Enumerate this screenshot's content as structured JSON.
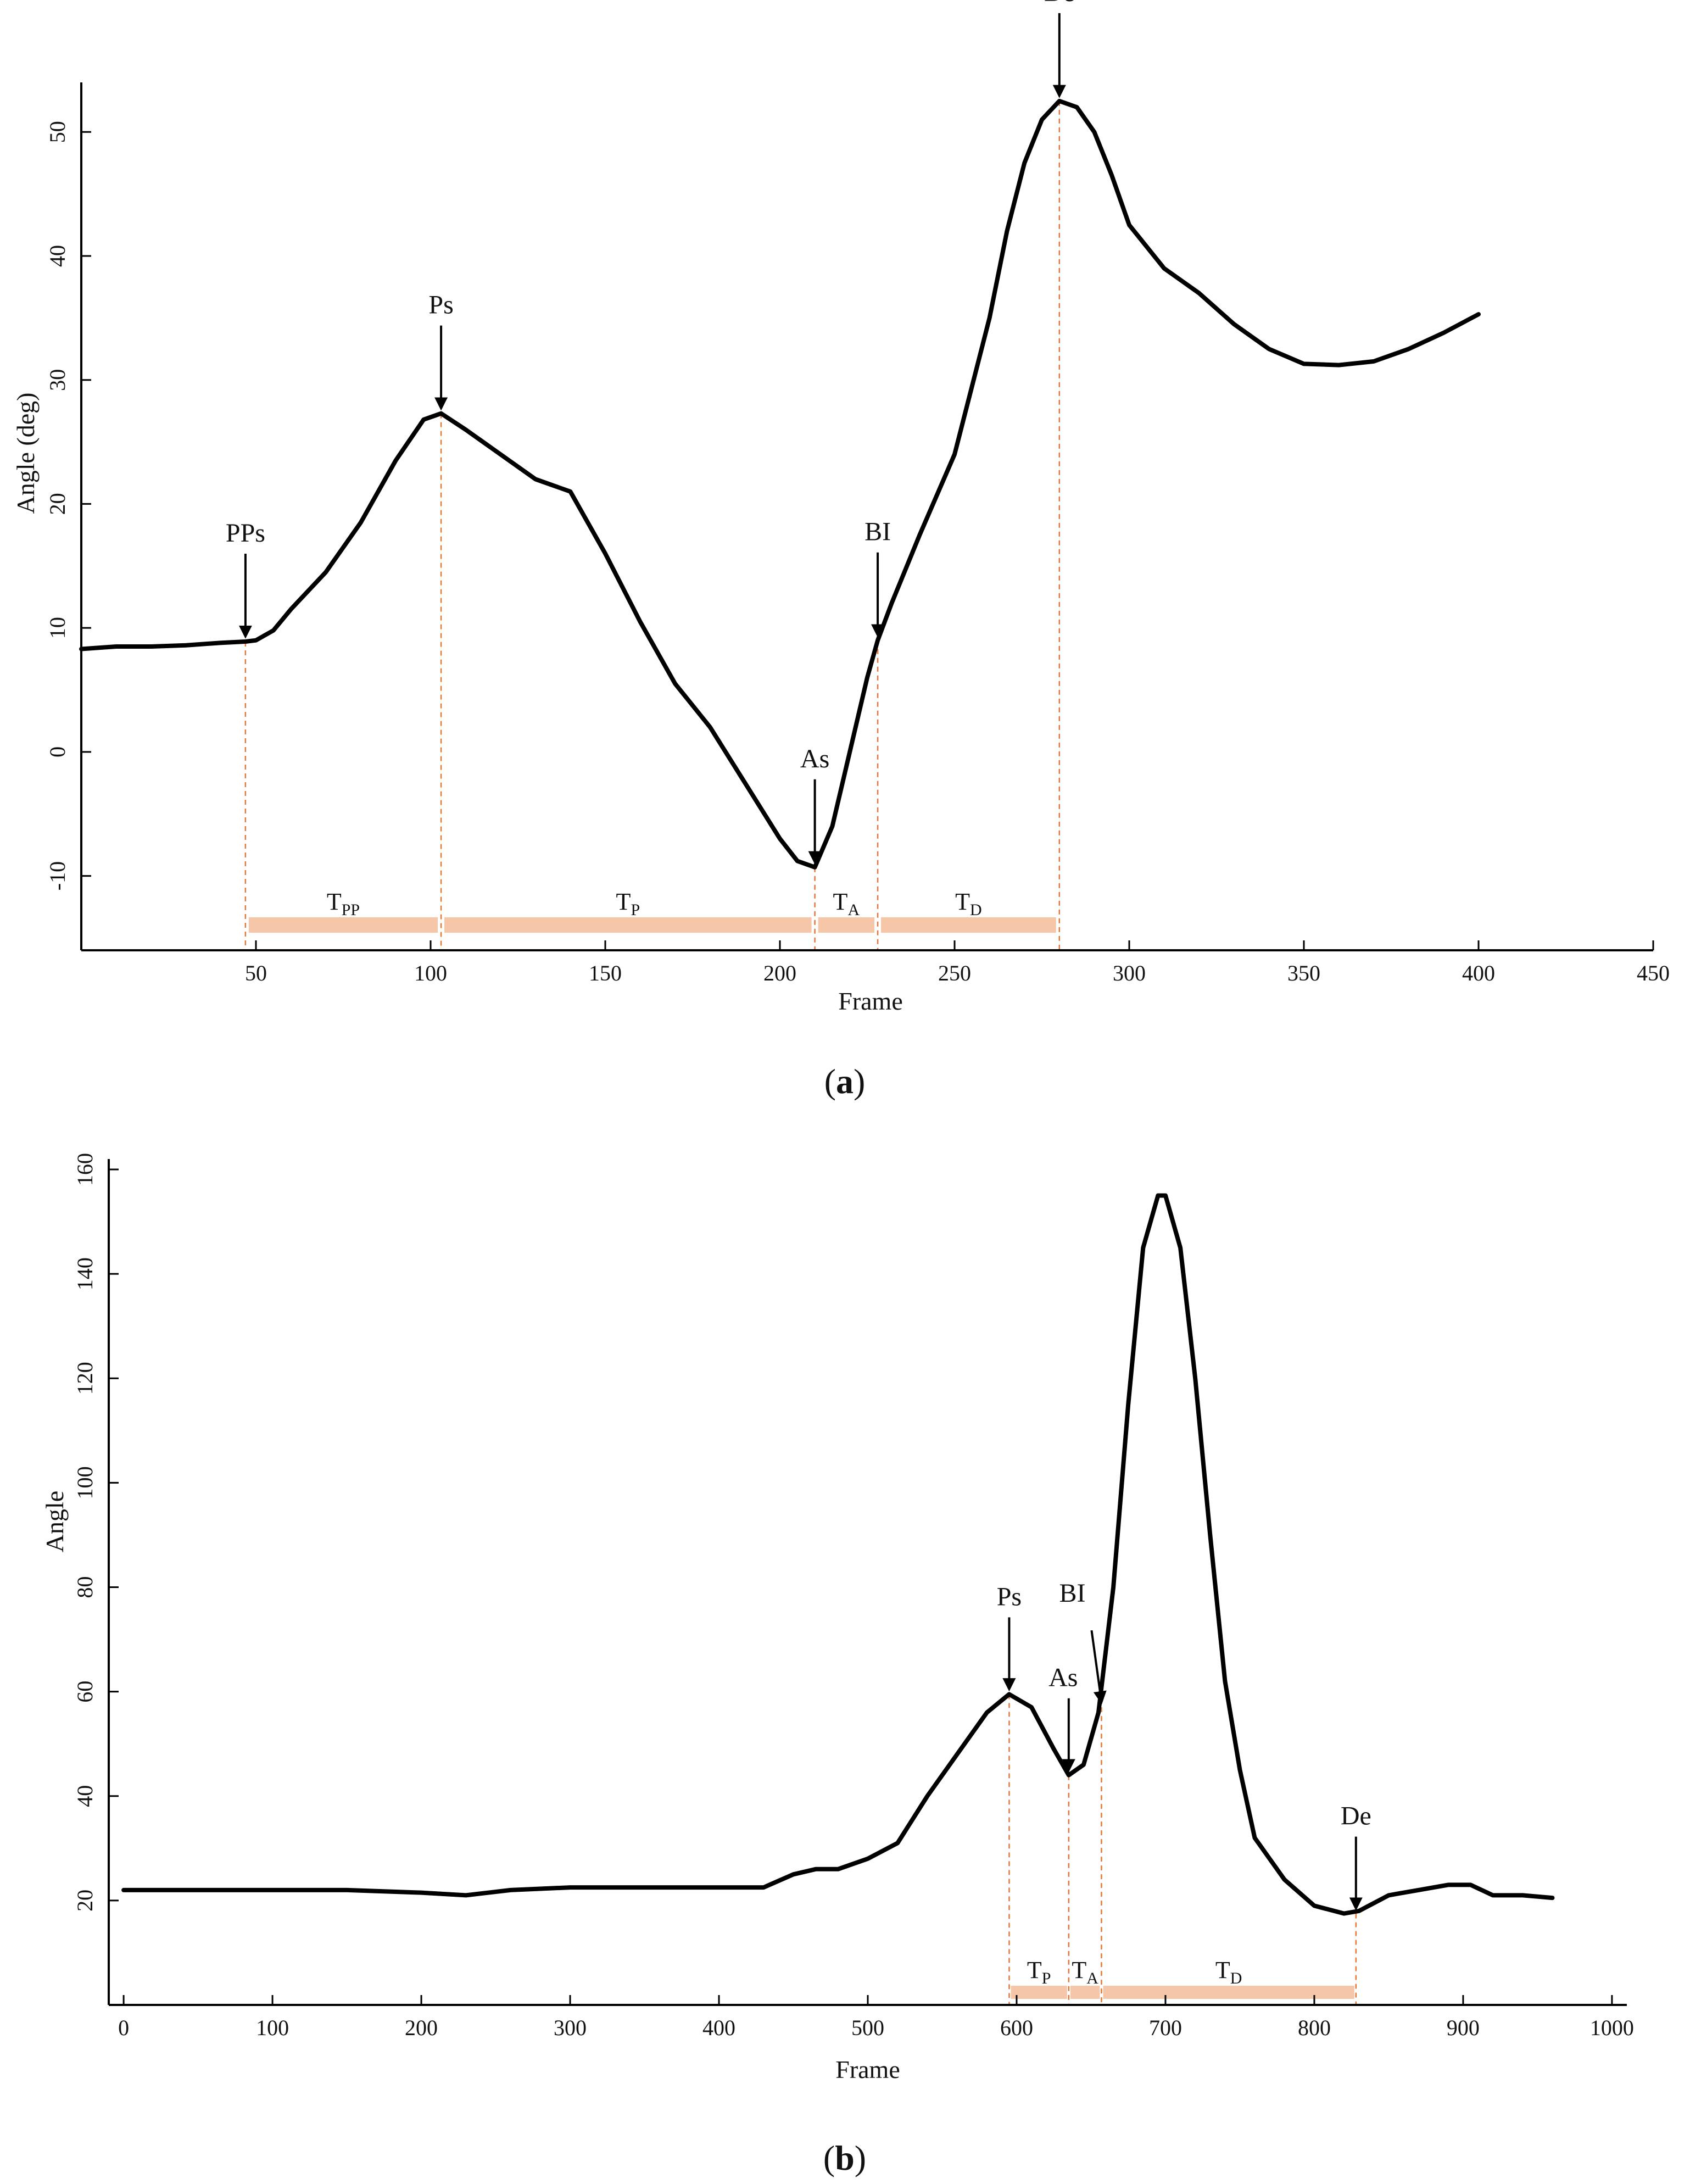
{
  "figure": {
    "captions": [
      {
        "open": "(",
        "letter": "a",
        "close": ")"
      },
      {
        "open": "(",
        "letter": "b",
        "close": ")"
      }
    ]
  },
  "colors": {
    "curve": "#000000",
    "phase_bar": "#f6c6a8",
    "event_line": "#e07a3a",
    "axis": "#000000"
  },
  "chart_data": [
    {
      "type": "line",
      "panel": "a",
      "xlabel": "Frame",
      "ylabel": "Angle  (deg)",
      "xlim": [
        0,
        450
      ],
      "ylim": [
        -16,
        54
      ],
      "xticks": [
        50,
        100,
        150,
        200,
        250,
        300,
        350,
        400,
        450
      ],
      "yticks": [
        -10,
        0,
        10,
        20,
        30,
        40,
        50
      ],
      "series": [
        {
          "x": [
            0,
            10,
            20,
            30,
            40,
            47,
            50,
            55,
            60,
            70,
            80,
            90,
            98,
            103,
            110,
            120,
            130,
            140,
            150,
            160,
            170,
            180,
            190,
            200,
            205,
            210,
            215,
            220,
            225,
            228,
            232,
            240,
            250,
            260,
            265,
            270,
            275,
            280,
            285,
            290,
            295,
            300,
            310,
            320,
            330,
            340,
            350,
            360,
            370,
            380,
            390,
            400
          ],
          "y": [
            8.3,
            8.5,
            8.5,
            8.6,
            8.8,
            8.9,
            9.0,
            9.8,
            11.5,
            14.5,
            18.5,
            23.5,
            26.8,
            27.3,
            26.0,
            24.0,
            22.0,
            21.0,
            16.0,
            10.5,
            5.5,
            2.0,
            -2.5,
            -7.0,
            -8.8,
            -9.3,
            -6.0,
            0.0,
            6.0,
            9.0,
            12.0,
            17.5,
            24.0,
            35.0,
            42.0,
            47.5,
            51.0,
            52.5,
            52.0,
            50.0,
            46.5,
            42.5,
            39.0,
            37.0,
            34.5,
            32.5,
            31.3,
            31.2,
            31.5,
            32.5,
            33.8,
            35.3
          ]
        }
      ],
      "events": [
        {
          "label": "PPs",
          "x": 47,
          "y": 8.9
        },
        {
          "label": "Ps",
          "x": 103,
          "y": 27.3
        },
        {
          "label": "As",
          "x": 210,
          "y": -9.3
        },
        {
          "label": "BI",
          "x": 228,
          "y": 9.0
        },
        {
          "label": "De",
          "x": 280,
          "y": 52.5
        }
      ],
      "phases": [
        {
          "main": "T",
          "sub": "PP",
          "x0": 47,
          "x1": 103
        },
        {
          "main": "T",
          "sub": "P",
          "x0": 103,
          "x1": 210
        },
        {
          "main": "T",
          "sub": "A",
          "x0": 210,
          "x1": 228
        },
        {
          "main": "T",
          "sub": "D",
          "x0": 228,
          "x1": 280
        }
      ]
    },
    {
      "type": "line",
      "panel": "b",
      "xlabel": "Frame",
      "ylabel": "Angle",
      "xlim": [
        -10,
        1010
      ],
      "ylim": [
        0,
        162
      ],
      "xticks": [
        0,
        100,
        200,
        300,
        400,
        500,
        600,
        700,
        800,
        900,
        1000
      ],
      "yticks": [
        20,
        40,
        60,
        80,
        100,
        120,
        140,
        160
      ],
      "series": [
        {
          "x": [
            0,
            50,
            100,
            150,
            200,
            230,
            260,
            300,
            350,
            400,
            430,
            450,
            465,
            480,
            500,
            520,
            540,
            560,
            580,
            595,
            610,
            625,
            635,
            645,
            655,
            665,
            675,
            685,
            695,
            700,
            710,
            720,
            730,
            740,
            750,
            760,
            780,
            800,
            820,
            830,
            850,
            870,
            890,
            905,
            920,
            940,
            960
          ],
          "y": [
            22,
            22,
            22,
            22,
            21.5,
            21,
            22,
            22.5,
            22.5,
            22.5,
            22.5,
            25,
            26,
            26,
            28,
            31,
            40,
            48,
            56,
            59.5,
            57,
            49,
            44,
            46,
            56,
            80,
            115,
            145,
            155,
            155,
            145,
            120,
            90,
            62,
            45,
            32,
            24,
            19,
            17.5,
            18,
            21,
            22,
            23,
            23,
            21,
            21,
            20.5
          ]
        }
      ],
      "events": [
        {
          "label": "Ps",
          "x": 595,
          "y": 59.5
        },
        {
          "label": "As",
          "x": 635,
          "y": 44
        },
        {
          "label": "BI",
          "x": 657,
          "y": 57
        },
        {
          "label": "De",
          "x": 828,
          "y": 17.5
        }
      ],
      "phases": [
        {
          "main": "T",
          "sub": "P",
          "x0": 595,
          "x1": 635
        },
        {
          "main": "T",
          "sub": "A",
          "x0": 635,
          "x1": 657
        },
        {
          "main": "T",
          "sub": "D",
          "x0": 657,
          "x1": 828
        }
      ]
    }
  ]
}
